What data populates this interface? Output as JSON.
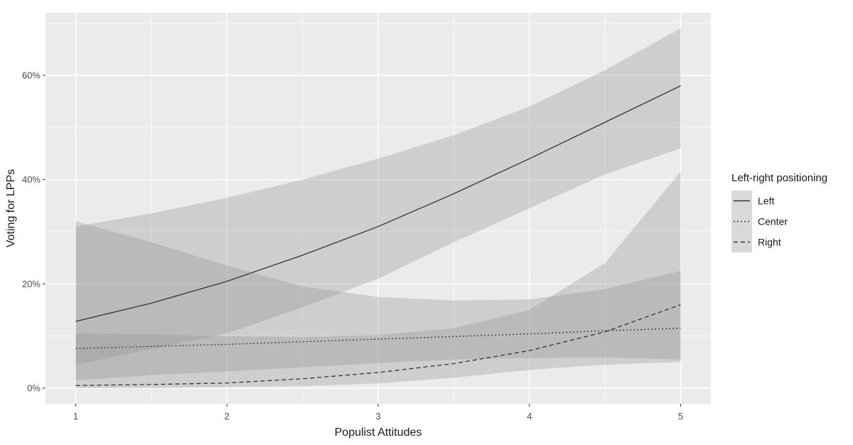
{
  "chart_data": {
    "type": "line",
    "title": "",
    "xlabel": "Populist Attitudes",
    "ylabel": "Voting for LPPs",
    "xlim": [
      0.8,
      5.2
    ],
    "ylim": [
      -3,
      72
    ],
    "xticks": [
      1,
      2,
      3,
      4,
      5
    ],
    "xtick_labels": [
      "1",
      "2",
      "3",
      "4",
      "5"
    ],
    "yticks": [
      0,
      20,
      40,
      60
    ],
    "ytick_labels": [
      "0%",
      "20%",
      "40%",
      "60%"
    ],
    "grid": true,
    "legend": {
      "title": "Left-right positioning",
      "placement": "right",
      "entries": [
        "Left",
        "Center",
        "Right"
      ]
    },
    "x": [
      1,
      1.5,
      2,
      2.5,
      3,
      3.5,
      4,
      4.5,
      5
    ],
    "series": [
      {
        "name": "Left",
        "linestyle": "solid",
        "values": [
          12.8,
          16.3,
          20.5,
          25.5,
          31.0,
          37.3,
          44.0,
          51.0,
          58.0
        ],
        "lower": [
          4.5,
          7.5,
          10.5,
          15.5,
          21.0,
          28.0,
          34.5,
          41.0,
          46.0
        ],
        "upper": [
          31.0,
          33.5,
          36.5,
          40.0,
          44.0,
          48.5,
          54.0,
          61.0,
          69.0
        ]
      },
      {
        "name": "Center",
        "linestyle": "dotted",
        "values": [
          7.6,
          8.0,
          8.4,
          8.9,
          9.4,
          9.9,
          10.4,
          11.0,
          11.5
        ],
        "lower": [
          1.5,
          2.5,
          3.2,
          4.0,
          4.8,
          5.5,
          5.8,
          5.9,
          5.5
        ],
        "upper": [
          32.0,
          28.0,
          23.5,
          19.5,
          17.5,
          16.8,
          17.0,
          19.0,
          22.5
        ]
      },
      {
        "name": "Right",
        "linestyle": "dashed",
        "values": [
          0.5,
          0.7,
          1.0,
          1.8,
          3.0,
          4.7,
          7.2,
          10.8,
          16.0
        ],
        "lower": [
          0.0,
          0.0,
          0.2,
          0.4,
          0.9,
          2.0,
          3.5,
          4.5,
          5.0
        ],
        "upper": [
          10.5,
          10.3,
          10.0,
          9.8,
          10.2,
          11.5,
          15.0,
          24.0,
          41.5
        ]
      }
    ],
    "colors": {
      "panel_bg": "#ebebeb",
      "grid": "#ffffff",
      "band": "#8c8c8c",
      "line": "#333333",
      "legend_key_bg": "#d9d9d9"
    }
  }
}
